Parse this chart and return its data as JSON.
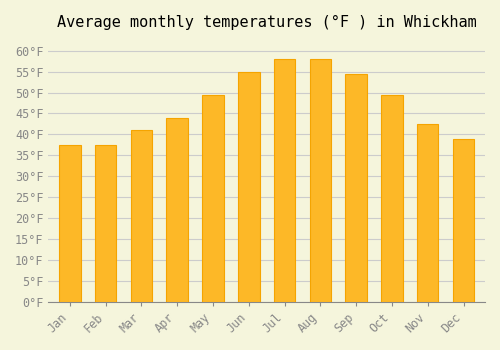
{
  "title": "Average monthly temperatures (°F ) in Whickham",
  "months": [
    "Jan",
    "Feb",
    "Mar",
    "Apr",
    "May",
    "Jun",
    "Jul",
    "Aug",
    "Sep",
    "Oct",
    "Nov",
    "Dec"
  ],
  "values": [
    37.5,
    37.5,
    41,
    44,
    49.5,
    55,
    58,
    58,
    54.5,
    49.5,
    42.5,
    39
  ],
  "bar_color_face": "#FDB827",
  "bar_color_edge": "#F5A400",
  "background_color": "#F5F5DC",
  "grid_color": "#CCCCCC",
  "ylim": [
    0,
    63
  ],
  "yticks": [
    0,
    5,
    10,
    15,
    20,
    25,
    30,
    35,
    40,
    45,
    50,
    55,
    60
  ],
  "ytick_labels": [
    "0°F",
    "5°F",
    "10°F",
    "15°F",
    "20°F",
    "25°F",
    "30°F",
    "35°F",
    "40°F",
    "45°F",
    "50°F",
    "55°F",
    "60°F"
  ],
  "title_fontsize": 11,
  "tick_fontsize": 8.5
}
